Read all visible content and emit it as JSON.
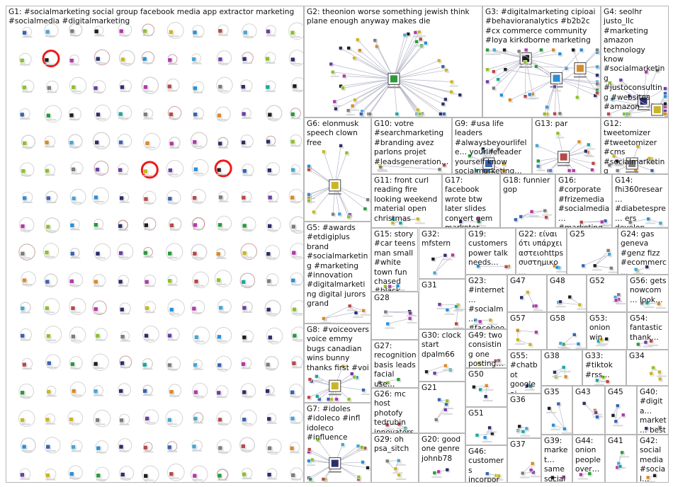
{
  "groups": [
    {
      "id": "G1",
      "label": "G1: #socialmarketing social group facebook media app extractor marketing #socialmedia #digitalmarketing",
      "kind": "grid"
    },
    {
      "id": "G2",
      "label": "G2: theonion worse something jewish think plane enough anyway makes die",
      "kind": "hub"
    },
    {
      "id": "G3",
      "label": "G3: #digitalmarketing cipioai #behavioranalytics #b2b2c #cx commerce community #loya kirkdborne marketing",
      "kind": "hub"
    },
    {
      "id": "G4",
      "label": "G4: seolhr justo_llc #marketing amazon technology know #socialmarketing #justoconsulting #websites #amazon",
      "kind": "hub"
    },
    {
      "id": "G5",
      "label": "G5: #awards #etdigiplus brand #socialmarketing #marketing #innovation #digitalmarketing digital jurors grand",
      "kind": "loose"
    },
    {
      "id": "G6",
      "label": "G6: elonmusk speech clown free",
      "kind": "hub"
    },
    {
      "id": "G7",
      "label": "G7: #idoles #idoleco #infl idoleco #influence",
      "kind": "hub"
    },
    {
      "id": "G8",
      "label": "G8: #voiceovers voice emmy bugs canadian wins bunny thanks first #voi",
      "kind": "hub"
    },
    {
      "id": "G9",
      "label": "G9: #usa life leaders #alwaysbeyourlifele… yourlifeleader yourself know socialmarketing…",
      "kind": "hub"
    },
    {
      "id": "G10",
      "label": "G10: votre #searchmarketing #branding avez parlons projet #leadsgeneration…",
      "kind": "loose"
    },
    {
      "id": "G11",
      "label": "G11: front curl reading fire looking weekend material open christmas",
      "kind": "loose"
    },
    {
      "id": "G12",
      "label": "G12: tweetomizer #tweetomizer #cms #socialmarketing #setandforget…",
      "kind": "hub"
    },
    {
      "id": "G13",
      "label": "G13: par",
      "kind": "hub"
    },
    {
      "id": "G14",
      "label": "G14: fhi360resear… #diabetespre… ers develop evaluate…",
      "kind": "loose"
    },
    {
      "id": "G15",
      "label": "G15: story #car teens man small #white town fun chased #black",
      "kind": "loose"
    },
    {
      "id": "G16",
      "label": "G16: #corporate #frizemedia #socialmedia… #marketing…",
      "kind": "loose"
    },
    {
      "id": "G17",
      "label": "G17: facebook wrote btw later slides convert gem marketer thanks…",
      "kind": "loose"
    },
    {
      "id": "G18",
      "label": "G18: funnier gop",
      "kind": "loose"
    },
    {
      "id": "G19",
      "label": "G19: customers power talk needs…",
      "kind": "loose"
    },
    {
      "id": "G20",
      "label": "G20: good one genre johnb78",
      "kind": "loose"
    },
    {
      "id": "G21",
      "label": "G21",
      "kind": "loose"
    },
    {
      "id": "G22",
      "label": "G22: είναι ότι υπάρχει αστειοhttps συστημικο…",
      "kind": "loose"
    },
    {
      "id": "G23",
      "label": "G23: #internet… #socialm… #facebook #socialm…",
      "kind": "loose"
    },
    {
      "id": "G24",
      "label": "G24: gas geneva #genz fizz #ecommerc…",
      "kind": "loose"
    },
    {
      "id": "G25",
      "label": "G25",
      "kind": "loose"
    },
    {
      "id": "G26",
      "label": "G26: mc host photofy tedrubin innovators…",
      "kind": "loose"
    },
    {
      "id": "G27",
      "label": "G27: recognition basis leads facial use…",
      "kind": "loose"
    },
    {
      "id": "G28",
      "label": "G28",
      "kind": "loose"
    },
    {
      "id": "G29",
      "label": "G29: oh psa_sitch",
      "kind": "loose"
    },
    {
      "id": "G30",
      "label": "G30: clock start dpalm66",
      "kind": "loose"
    },
    {
      "id": "G31",
      "label": "G31",
      "kind": "loose"
    },
    {
      "id": "G32",
      "label": "G32: mfstern",
      "kind": "loose"
    },
    {
      "id": "G33",
      "label": "G33: #tiktok #rss…",
      "kind": "loose"
    },
    {
      "id": "G34",
      "label": "G34",
      "kind": "loose"
    },
    {
      "id": "G35",
      "label": "G35",
      "kind": "loose"
    },
    {
      "id": "G36",
      "label": "G36",
      "kind": "loose"
    },
    {
      "id": "G37",
      "label": "G37",
      "kind": "loose"
    },
    {
      "id": "G38",
      "label": "G38",
      "kind": "loose"
    },
    {
      "id": "G39",
      "label": "G39: market… same social…",
      "kind": "loose"
    },
    {
      "id": "G40",
      "label": "G40: #digita… market… best #mark…",
      "kind": "loose"
    },
    {
      "id": "G41",
      "label": "G41",
      "kind": "loose"
    },
    {
      "id": "G42",
      "label": "G42: social media #social…",
      "kind": "loose"
    },
    {
      "id": "G43",
      "label": "G43",
      "kind": "loose"
    },
    {
      "id": "G44",
      "label": "G44: onion people over…",
      "kind": "loose"
    },
    {
      "id": "G45",
      "label": "G45",
      "kind": "loose"
    },
    {
      "id": "G46",
      "label": "G46: customers incorpor…",
      "kind": "loose"
    },
    {
      "id": "G47",
      "label": "G47",
      "kind": "loose"
    },
    {
      "id": "G48",
      "label": "G48",
      "kind": "loose"
    },
    {
      "id": "G49",
      "label": "G49: two consisting one posting…",
      "kind": "loose"
    },
    {
      "id": "G50",
      "label": "G50",
      "kind": "loose"
    },
    {
      "id": "G51",
      "label": "G51",
      "kind": "loose"
    },
    {
      "id": "G52",
      "label": "G52",
      "kind": "loose"
    },
    {
      "id": "G53",
      "label": "G53: onion win",
      "kind": "loose"
    },
    {
      "id": "G54",
      "label": "G54: fantastic thank…",
      "kind": "loose"
    },
    {
      "id": "G55",
      "label": "G55: #chatbot google ai rushing…",
      "kind": "loose"
    },
    {
      "id": "G56",
      "label": "G56: gets nowcom… look…",
      "kind": "loose"
    },
    {
      "id": "G57",
      "label": "G57",
      "kind": "loose"
    },
    {
      "id": "G58",
      "label": "G58",
      "kind": "loose"
    }
  ],
  "colors": {
    "border": "#b7b7b7",
    "edge": "#b5b5c9",
    "self_loop": "#c9a3a3",
    "highlight": "#f01818",
    "node_palette": [
      "#2d2f6a",
      "#3a63b0",
      "#2b8fd6",
      "#1aa6a0",
      "#2a9a3c",
      "#8fbf2e",
      "#c9b52a",
      "#d88a2b",
      "#b03aa8",
      "#6b3fa0",
      "#7d7d7d",
      "#1f1f1f",
      "#b44a4a",
      "#4aa5d0"
    ]
  }
}
